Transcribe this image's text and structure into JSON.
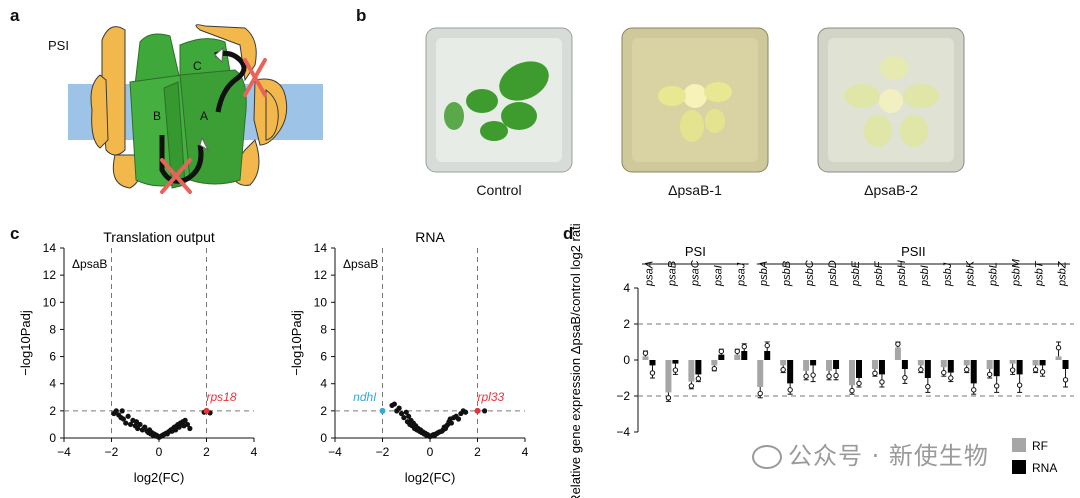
{
  "panels": {
    "a": {
      "letter": "a",
      "label": "PSI",
      "subunits": [
        "B",
        "A",
        "C"
      ]
    },
    "b": {
      "letter": "b",
      "photos": [
        "Control",
        "ΔpsaB-1",
        "ΔpsaB-2"
      ]
    },
    "c": {
      "letter": "c"
    },
    "d": {
      "letter": "d"
    }
  },
  "watermark": "公众号 · 新使生物",
  "colors": {
    "psi_green": "#3fa83a",
    "psi_yellow": "#f2b84b",
    "membrane_blue": "#9dc3e6",
    "cross_red": "#e8645a",
    "highlight_red": "#e8323c",
    "highlight_blue": "#3ba7d6",
    "rf_gray": "#a6a6a6",
    "rna_black": "#000000"
  },
  "chart_data": [
    {
      "type": "scatter",
      "title": "Translation output",
      "xlabel": "log2(FC)",
      "ylabel": "−log10Padj",
      "xlim": [
        -4,
        4
      ],
      "ylim": [
        0,
        14
      ],
      "xticks": [
        -4,
        -2,
        0,
        2,
        4
      ],
      "yticks": [
        0,
        2,
        4,
        6,
        8,
        10,
        12,
        14
      ],
      "corner_label": "ΔpsaB",
      "thresholds": {
        "x": [
          -2,
          2
        ],
        "y": 2
      },
      "highlighted": [
        {
          "label": "rps18",
          "x": 2.0,
          "y": 2.0,
          "color": "#e8323c"
        }
      ],
      "points": [
        [
          -1.9,
          1.8
        ],
        [
          -1.8,
          2.0
        ],
        [
          -1.7,
          1.7
        ],
        [
          -1.6,
          1.5
        ],
        [
          -1.55,
          2.0
        ],
        [
          -1.5,
          1.4
        ],
        [
          -1.4,
          1.1
        ],
        [
          -1.3,
          1.6
        ],
        [
          -1.2,
          1.0
        ],
        [
          -1.1,
          1.3
        ],
        [
          -1.0,
          0.9
        ],
        [
          -0.95,
          1.2
        ],
        [
          -0.9,
          0.7
        ],
        [
          -0.8,
          1.0
        ],
        [
          -0.7,
          0.6
        ],
        [
          -0.6,
          0.8
        ],
        [
          -0.5,
          0.5
        ],
        [
          -0.45,
          0.4
        ],
        [
          -0.4,
          0.6
        ],
        [
          -0.35,
          0.3
        ],
        [
          -0.3,
          0.4
        ],
        [
          -0.25,
          0.2
        ],
        [
          -0.2,
          0.3
        ],
        [
          -0.15,
          0.15
        ],
        [
          -0.1,
          0.2
        ],
        [
          -0.05,
          0.1
        ],
        [
          0.0,
          0.05
        ],
        [
          0.05,
          0.1
        ],
        [
          0.1,
          0.15
        ],
        [
          0.15,
          0.2
        ],
        [
          0.2,
          0.25
        ],
        [
          0.25,
          0.3
        ],
        [
          0.3,
          0.35
        ],
        [
          0.35,
          0.3
        ],
        [
          0.4,
          0.45
        ],
        [
          0.45,
          0.5
        ],
        [
          0.5,
          0.6
        ],
        [
          0.55,
          0.5
        ],
        [
          0.6,
          0.7
        ],
        [
          0.65,
          0.8
        ],
        [
          0.7,
          0.6
        ],
        [
          0.75,
          0.9
        ],
        [
          0.8,
          1.0
        ],
        [
          0.85,
          0.8
        ],
        [
          0.9,
          1.1
        ],
        [
          1.0,
          1.2
        ],
        [
          1.05,
          0.9
        ],
        [
          1.1,
          1.3
        ],
        [
          1.2,
          1.0
        ],
        [
          1.3,
          0.7
        ],
        [
          1.9,
          1.9
        ],
        [
          2.15,
          1.85
        ]
      ]
    },
    {
      "type": "scatter",
      "title": "RNA",
      "xlabel": "log2(FC)",
      "ylabel": "−log10Padj",
      "xlim": [
        -4,
        4
      ],
      "ylim": [
        0,
        14
      ],
      "xticks": [
        -4,
        -2,
        0,
        2,
        4
      ],
      "yticks": [
        0,
        2,
        4,
        6,
        8,
        10,
        12,
        14
      ],
      "corner_label": "ΔpsaB",
      "thresholds": {
        "x": [
          -2,
          2
        ],
        "y": 2
      },
      "highlighted": [
        {
          "label": "ndhI",
          "x": -2.0,
          "y": 2.0,
          "color": "#3ba7d6"
        },
        {
          "label": "rpl33",
          "x": 2.0,
          "y": 2.0,
          "color": "#e8323c"
        }
      ],
      "points": [
        [
          -1.6,
          2.4
        ],
        [
          -1.5,
          2.5
        ],
        [
          -1.4,
          2.0
        ],
        [
          -1.3,
          2.2
        ],
        [
          -1.2,
          1.8
        ],
        [
          -1.1,
          1.5
        ],
        [
          -1.0,
          1.9
        ],
        [
          -0.95,
          1.2
        ],
        [
          -0.9,
          1.6
        ],
        [
          -0.85,
          1.0
        ],
        [
          -0.8,
          1.3
        ],
        [
          -0.75,
          0.9
        ],
        [
          -0.7,
          1.1
        ],
        [
          -0.65,
          0.7
        ],
        [
          -0.6,
          0.9
        ],
        [
          -0.55,
          0.6
        ],
        [
          -0.5,
          0.7
        ],
        [
          -0.45,
          0.5
        ],
        [
          -0.4,
          0.6
        ],
        [
          -0.35,
          0.4
        ],
        [
          -0.3,
          0.45
        ],
        [
          -0.25,
          0.3
        ],
        [
          -0.2,
          0.35
        ],
        [
          -0.15,
          0.2
        ],
        [
          -0.1,
          0.25
        ],
        [
          -0.05,
          0.15
        ],
        [
          0.0,
          0.1
        ],
        [
          0.05,
          0.15
        ],
        [
          0.1,
          0.2
        ],
        [
          0.15,
          0.25
        ],
        [
          0.2,
          0.2
        ],
        [
          0.25,
          0.3
        ],
        [
          0.3,
          0.35
        ],
        [
          0.35,
          0.4
        ],
        [
          0.4,
          0.45
        ],
        [
          0.5,
          0.5
        ],
        [
          0.55,
          0.6
        ],
        [
          0.6,
          0.8
        ],
        [
          0.65,
          0.7
        ],
        [
          0.7,
          0.9
        ],
        [
          0.75,
          1.0
        ],
        [
          0.8,
          1.2
        ],
        [
          0.85,
          1.4
        ],
        [
          0.9,
          1.1
        ],
        [
          1.0,
          1.5
        ],
        [
          1.1,
          1.6
        ],
        [
          1.2,
          1.4
        ],
        [
          1.3,
          1.8
        ],
        [
          1.4,
          2.0
        ],
        [
          1.5,
          1.9
        ],
        [
          2.3,
          2.0
        ]
      ]
    },
    {
      "type": "bar",
      "ylabel": "Relative gene expression ΔpsaB/control log2 ratio",
      "ylim": [
        -4,
        4
      ],
      "yticks": [
        4,
        2,
        0,
        -2,
        -4
      ],
      "thresholds": {
        "y": [
          2,
          -2
        ]
      },
      "groups": [
        {
          "name": "PSI",
          "genes": [
            "psaA",
            "psaB",
            "psaC",
            "psaI",
            "psaJ"
          ]
        },
        {
          "name": "PSII",
          "genes": [
            "psbA",
            "psbB",
            "psbC",
            "psbD",
            "psbE",
            "psbF",
            "psbH",
            "psbI",
            "psbJ",
            "psbK",
            "psbL",
            "psbM",
            "psbT",
            "psbZ"
          ]
        }
      ],
      "categories": [
        "psaA",
        "psaB",
        "psaC",
        "psaI",
        "psaJ",
        "psbA",
        "psbB",
        "psbC",
        "psbD",
        "psbE",
        "psbF",
        "psbH",
        "psbI",
        "psbJ",
        "psbK",
        "psbL",
        "psbM",
        "psbT",
        "psbZ"
      ],
      "series": [
        {
          "name": "RF",
          "color": "#a6a6a6",
          "values": [
            0.2,
            -1.8,
            -1.2,
            -0.3,
            0.3,
            -1.5,
            -0.3,
            -0.6,
            -0.6,
            -1.4,
            -0.5,
            0.7,
            -0.3,
            -0.4,
            -0.3,
            -0.5,
            -0.2,
            -0.3,
            0.2
          ],
          "errors": [
            0.3,
            0.5,
            0.4,
            0.3,
            0.3,
            0.6,
            0.4,
            0.5,
            0.5,
            0.5,
            0.4,
            0.3,
            0.4,
            0.5,
            0.4,
            0.5,
            0.6,
            0.4,
            0.8
          ]
        },
        {
          "name": "RNA",
          "color": "#000000",
          "values": [
            -0.3,
            -0.2,
            -0.8,
            0.3,
            0.5,
            0.5,
            -1.3,
            -0.3,
            -0.5,
            -1.0,
            -0.8,
            -0.5,
            -1.0,
            -0.7,
            -1.3,
            -0.9,
            -0.8,
            -0.3,
            -0.5
          ],
          "errors": [
            0.7,
            0.6,
            0.4,
            0.3,
            0.4,
            0.5,
            0.6,
            0.9,
            0.6,
            0.5,
            0.7,
            0.8,
            0.8,
            0.5,
            0.6,
            0.9,
            1.0,
            0.6,
            1.0
          ]
        }
      ],
      "legend": [
        "RF",
        "RNA"
      ]
    }
  ]
}
